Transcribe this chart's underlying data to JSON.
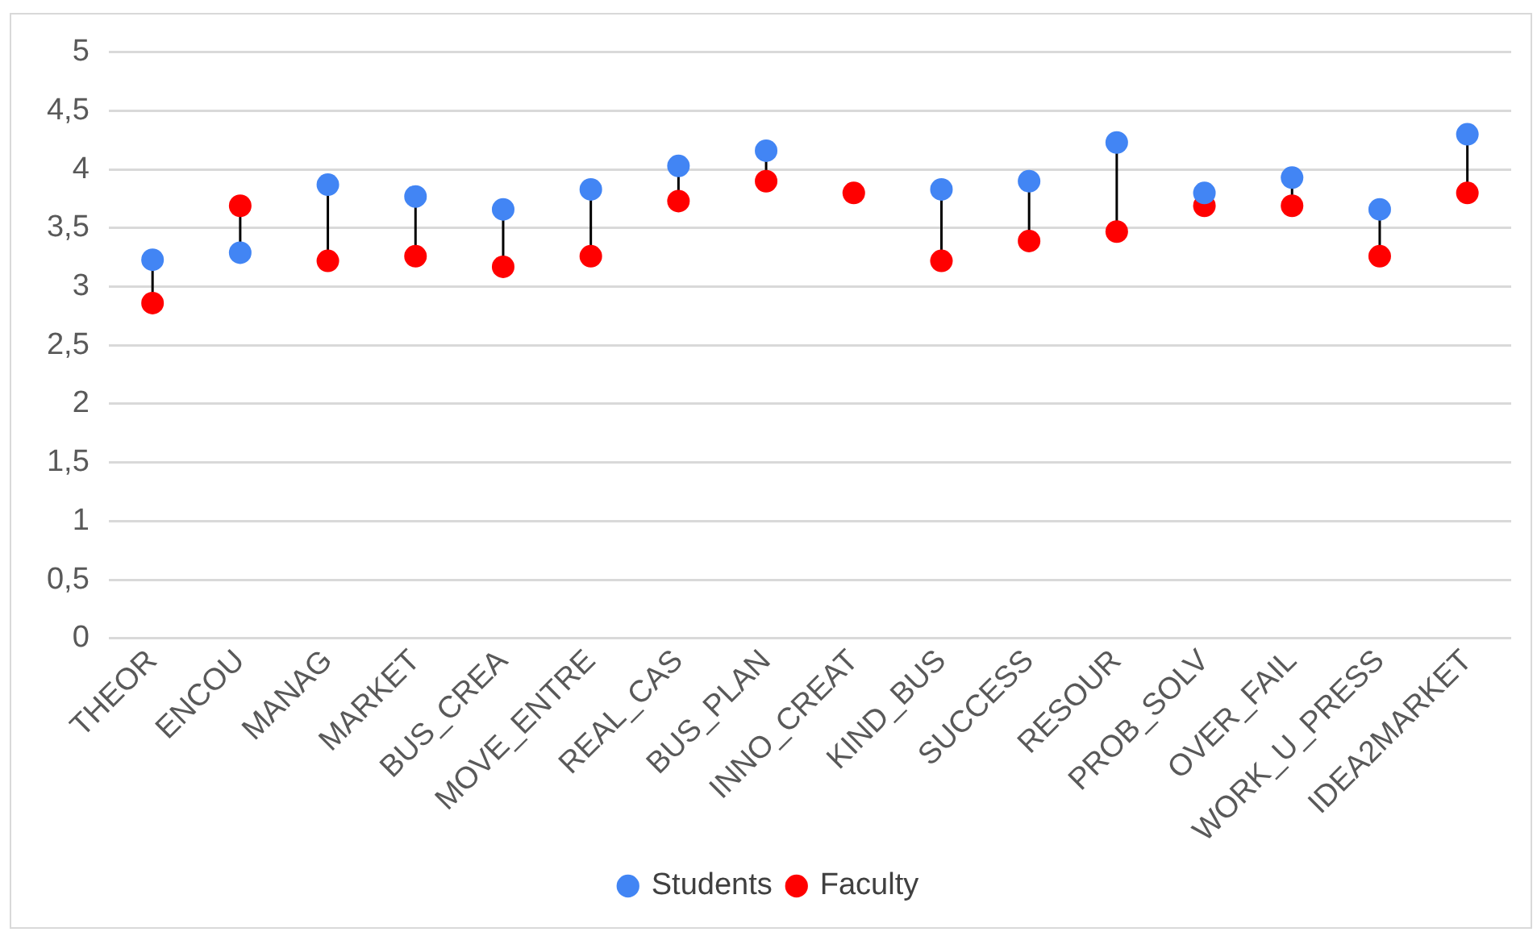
{
  "chart_data": {
    "type": "scatter",
    "categories": [
      "THEOR",
      "ENCOU",
      "MANAG",
      "MARKET",
      "BUS_CREA",
      "MOVE_ENTRE",
      "REAL_CAS",
      "BUS_PLAN",
      "INNO_CREAT",
      "KIND_BUS",
      "SUCCESS",
      "RESOUR",
      "PROB_SOLV",
      "OVER_FAIL",
      "WORK_U_PRESS",
      "IDEA2MARKET"
    ],
    "series": [
      {
        "name": "Students",
        "color": "#4285f4",
        "values": [
          3.23,
          3.29,
          3.87,
          3.77,
          3.66,
          3.83,
          4.03,
          4.16,
          null,
          3.83,
          3.9,
          4.23,
          3.8,
          3.93,
          3.66,
          4.3
        ]
      },
      {
        "name": "Faculty",
        "color": "#ff0000",
        "values": [
          2.86,
          3.69,
          3.22,
          3.26,
          3.17,
          3.26,
          3.73,
          3.9,
          3.8,
          3.22,
          3.39,
          3.47,
          3.69,
          3.69,
          3.26,
          3.8
        ]
      }
    ],
    "ylim": [
      0,
      5
    ],
    "yticks": [
      0,
      {
        "value": 0.5,
        "label": "0,5"
      },
      1,
      {
        "value": 1.5,
        "label": "1,5"
      },
      2,
      {
        "value": 2.5,
        "label": "2,5"
      },
      3,
      {
        "value": 3.5,
        "label": "3,5"
      },
      4,
      {
        "value": 4.5,
        "label": "4,5"
      },
      5
    ],
    "grid": "y",
    "legend": "bottom",
    "marker": "circle"
  }
}
